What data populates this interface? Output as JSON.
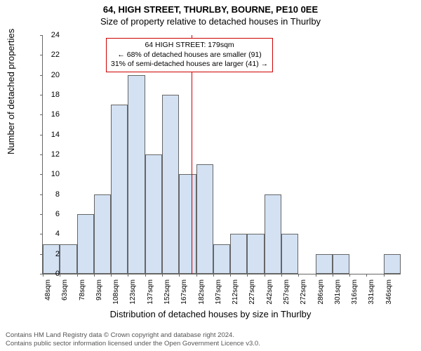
{
  "title_main": "64, HIGH STREET, THURLBY, BOURNE, PE10 0EE",
  "title_sub": "Size of property relative to detached houses in Thurlby",
  "ylabel": "Number of detached properties",
  "xlabel": "Distribution of detached houses by size in Thurlby",
  "footer_line1": "Contains HM Land Registry data © Crown copyright and database right 2024.",
  "footer_line2": "Contains public sector information licensed under the Open Government Licence v3.0.",
  "chart": {
    "type": "histogram",
    "ylim": [
      0,
      24
    ],
    "ytick_step": 2,
    "bar_color": "#d3e1f3",
    "bar_border": "#666666",
    "background_color": "#ffffff",
    "axis_color": "#666666",
    "font_size_ticks": 11,
    "font_size_labels": 13,
    "x_categories": [
      "48sqm",
      "63sqm",
      "78sqm",
      "93sqm",
      "108sqm",
      "123sqm",
      "137sqm",
      "152sqm",
      "167sqm",
      "182sqm",
      "197sqm",
      "212sqm",
      "227sqm",
      "242sqm",
      "257sqm",
      "272sqm",
      "286sqm",
      "301sqm",
      "316sqm",
      "331sqm",
      "346sqm"
    ],
    "values": [
      3,
      3,
      6,
      8,
      17,
      20,
      12,
      18,
      10,
      11,
      3,
      4,
      4,
      8,
      4,
      0,
      2,
      2,
      0,
      0,
      2
    ],
    "reference_line": {
      "x_value": 179,
      "x_min": 48,
      "x_range_per_bucket": 15,
      "color": "#cc0000"
    },
    "annotation": {
      "border_color": "#cc0000",
      "lines": [
        "64 HIGH STREET: 179sqm",
        "← 68% of detached houses are smaller (91)",
        "31% of semi-detached houses are larger (41) →"
      ]
    }
  }
}
